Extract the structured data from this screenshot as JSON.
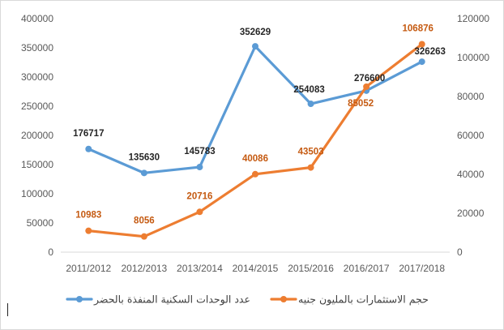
{
  "chart_data": {
    "type": "line",
    "categories": [
      "2011/2012",
      "2012/2013",
      "2013/2014",
      "2014/2015",
      "2015/2016",
      "2016/2017",
      "2017/2018"
    ],
    "series": [
      {
        "name": "عدد الوحدات السكنية المنفذة بالحضر",
        "axis": "left",
        "color": "#5B9BD5",
        "values": [
          176717,
          135630,
          145783,
          352629,
          254083,
          276600,
          326263
        ]
      },
      {
        "name": "حجم الاستثمارات بالمليون جنيه",
        "axis": "right",
        "color": "#ED7D31",
        "values": [
          10983,
          8056,
          20716,
          40086,
          43503,
          85052,
          106876
        ]
      }
    ],
    "y_left": {
      "min": 0,
      "max": 400000,
      "step": 50000
    },
    "y_right": {
      "min": 0,
      "max": 120000,
      "step": 20000
    },
    "grid": false,
    "legend_position": "bottom",
    "data_label_color_left": "#262626",
    "data_label_color_right": "#C55A11"
  }
}
